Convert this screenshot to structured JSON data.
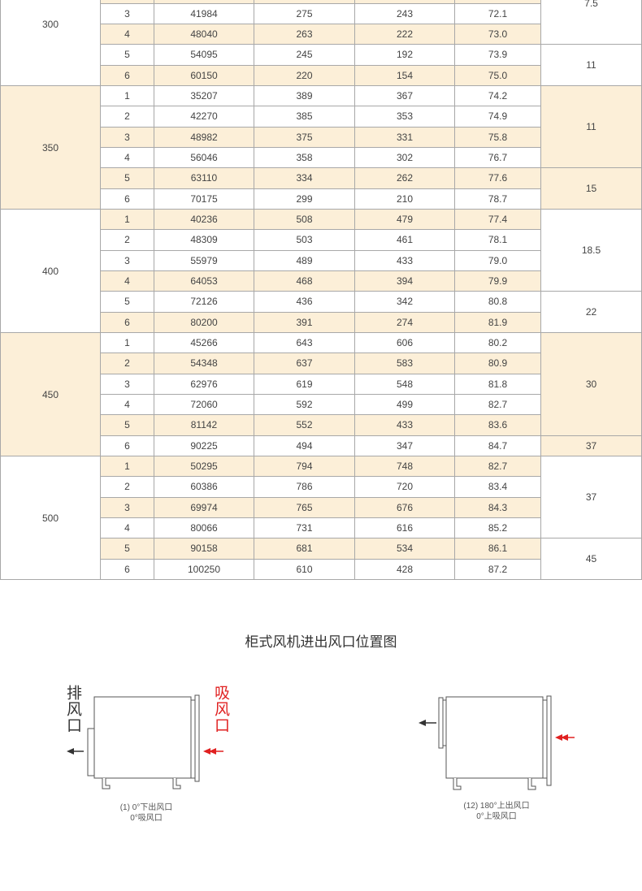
{
  "table": {
    "groups": [
      {
        "size": "300",
        "shaded": false,
        "blocks": [
          {
            "power": "7.5",
            "shaded": false,
            "rows": [
              {
                "cells": [
                  "3",
                  "41984",
                  "275",
                  "243",
                  "72.1"
                ],
                "shaded": false
              },
              {
                "cells": [
                  "4",
                  "48040",
                  "263",
                  "222",
                  "73.0"
                ],
                "shaded": true
              }
            ]
          },
          {
            "power": "11",
            "shaded": false,
            "rows": [
              {
                "cells": [
                  "5",
                  "54095",
                  "245",
                  "192",
                  "73.9"
                ],
                "shaded": false
              },
              {
                "cells": [
                  "6",
                  "60150",
                  "220",
                  "154",
                  "75.0"
                ],
                "shaded": true
              }
            ]
          }
        ]
      },
      {
        "size": "350",
        "shaded": true,
        "blocks": [
          {
            "power": "11",
            "shaded": true,
            "rows": [
              {
                "cells": [
                  "1",
                  "35207",
                  "389",
                  "367",
                  "74.2"
                ],
                "shaded": false
              },
              {
                "cells": [
                  "2",
                  "42270",
                  "385",
                  "353",
                  "74.9"
                ],
                "shaded": false
              },
              {
                "cells": [
                  "3",
                  "48982",
                  "375",
                  "331",
                  "75.8"
                ],
                "shaded": true
              },
              {
                "cells": [
                  "4",
                  "56046",
                  "358",
                  "302",
                  "76.7"
                ],
                "shaded": false
              }
            ]
          },
          {
            "power": "15",
            "shaded": true,
            "rows": [
              {
                "cells": [
                  "5",
                  "63110",
                  "334",
                  "262",
                  "77.6"
                ],
                "shaded": true
              },
              {
                "cells": [
                  "6",
                  "70175",
                  "299",
                  "210",
                  "78.7"
                ],
                "shaded": false
              }
            ]
          }
        ]
      },
      {
        "size": "400",
        "shaded": false,
        "blocks": [
          {
            "power": "18.5",
            "shaded": false,
            "rows": [
              {
                "cells": [
                  "1",
                  "40236",
                  "508",
                  "479",
                  "77.4"
                ],
                "shaded": true
              },
              {
                "cells": [
                  "2",
                  "48309",
                  "503",
                  "461",
                  "78.1"
                ],
                "shaded": false
              },
              {
                "cells": [
                  "3",
                  "55979",
                  "489",
                  "433",
                  "79.0"
                ],
                "shaded": false
              },
              {
                "cells": [
                  "4",
                  "64053",
                  "468",
                  "394",
                  "79.9"
                ],
                "shaded": true
              }
            ]
          },
          {
            "power": "22",
            "shaded": false,
            "rows": [
              {
                "cells": [
                  "5",
                  "72126",
                  "436",
                  "342",
                  "80.8"
                ],
                "shaded": false
              },
              {
                "cells": [
                  "6",
                  "80200",
                  "391",
                  "274",
                  "81.9"
                ],
                "shaded": true
              }
            ]
          }
        ]
      },
      {
        "size": "450",
        "shaded": true,
        "blocks": [
          {
            "power": "30",
            "shaded": true,
            "rows": [
              {
                "cells": [
                  "1",
                  "45266",
                  "643",
                  "606",
                  "80.2"
                ],
                "shaded": false
              },
              {
                "cells": [
                  "2",
                  "54348",
                  "637",
                  "583",
                  "80.9"
                ],
                "shaded": true
              },
              {
                "cells": [
                  "3",
                  "62976",
                  "619",
                  "548",
                  "81.8"
                ],
                "shaded": false
              },
              {
                "cells": [
                  "4",
                  "72060",
                  "592",
                  "499",
                  "82.7"
                ],
                "shaded": false
              },
              {
                "cells": [
                  "5",
                  "81142",
                  "552",
                  "433",
                  "83.6"
                ],
                "shaded": true
              }
            ]
          },
          {
            "power": "37",
            "shaded": true,
            "rows": [
              {
                "cells": [
                  "6",
                  "90225",
                  "494",
                  "347",
                  "84.7"
                ],
                "shaded": false
              }
            ]
          }
        ]
      },
      {
        "size": "500",
        "shaded": false,
        "blocks": [
          {
            "power": "37",
            "shaded": false,
            "rows": [
              {
                "cells": [
                  "1",
                  "50295",
                  "794",
                  "748",
                  "82.7"
                ],
                "shaded": true
              },
              {
                "cells": [
                  "2",
                  "60386",
                  "786",
                  "720",
                  "83.4"
                ],
                "shaded": false
              },
              {
                "cells": [
                  "3",
                  "69974",
                  "765",
                  "676",
                  "84.3"
                ],
                "shaded": true
              },
              {
                "cells": [
                  "4",
                  "80066",
                  "731",
                  "616",
                  "85.2"
                ],
                "shaded": false
              }
            ]
          },
          {
            "power": "45",
            "shaded": false,
            "rows": [
              {
                "cells": [
                  "5",
                  "90158",
                  "681",
                  "534",
                  "86.1"
                ],
                "shaded": true
              },
              {
                "cells": [
                  "6",
                  "100250",
                  "610",
                  "428",
                  "87.2"
                ],
                "shaded": false
              }
            ]
          }
        ]
      }
    ]
  },
  "diagram": {
    "title": "柜式风机进出风口位置图",
    "figure1": {
      "outlet_label": "排风口",
      "inlet_label": "吸风口",
      "caption": [
        "(1) 0°下出风口",
        "0°吸风口"
      ]
    },
    "figure2": {
      "caption": [
        "(12) 180°上出风口",
        "0°上吸风口"
      ]
    }
  }
}
